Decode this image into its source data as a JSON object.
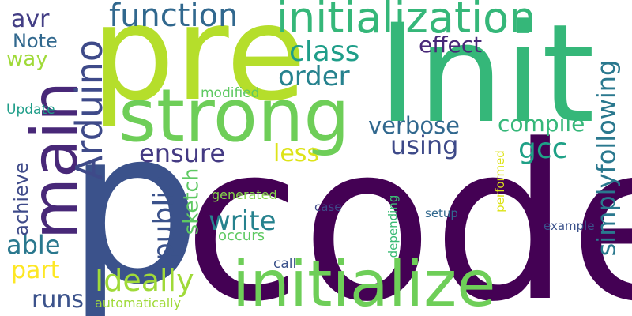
{
  "words": [
    {
      "text": "code",
      "color": "#440154"
    },
    {
      "text": "p",
      "color": "#3b528b"
    },
    {
      "text": "Init",
      "color": "#35b779"
    },
    {
      "text": "pre",
      "color": "#b5de2b"
    },
    {
      "text": "strong",
      "color": "#6ece58"
    },
    {
      "text": "initialize",
      "color": "#6ece58"
    },
    {
      "text": "initialization",
      "color": "#35b779"
    },
    {
      "text": "main",
      "color": "#482878"
    },
    {
      "text": "Arduino",
      "color": "#3e4a89"
    },
    {
      "text": "function",
      "color": "#31688e"
    },
    {
      "text": "class",
      "color": "#1f9e89"
    },
    {
      "text": "order",
      "color": "#26828e"
    },
    {
      "text": "effect",
      "color": "#482878"
    },
    {
      "text": "simplyfollowing",
      "color": "#2a788e"
    },
    {
      "text": "verbose",
      "color": "#31688e"
    },
    {
      "text": "compile",
      "color": "#35b779"
    },
    {
      "text": "gcc",
      "color": "#1fa187"
    },
    {
      "text": "using",
      "color": "#3e4a89"
    },
    {
      "text": "ensure",
      "color": "#443a83"
    },
    {
      "text": "less",
      "color": "#dde318"
    },
    {
      "text": "write",
      "color": "#26828e"
    },
    {
      "text": "public",
      "color": "#3b528b"
    },
    {
      "text": "sketch",
      "color": "#5ec962"
    },
    {
      "text": "Ideally",
      "color": "#a0da39"
    },
    {
      "text": "runs",
      "color": "#3b528b"
    },
    {
      "text": "part",
      "color": "#fde725"
    },
    {
      "text": "able",
      "color": "#2a788e"
    },
    {
      "text": "achieve",
      "color": "#3e4a89"
    },
    {
      "text": "avr",
      "color": "#433e85"
    },
    {
      "text": "Note",
      "color": "#31688e"
    },
    {
      "text": "way",
      "color": "#a0da39"
    },
    {
      "text": "Update",
      "color": "#1f9e89"
    },
    {
      "text": "modified",
      "color": "#5ec962"
    },
    {
      "text": "generated",
      "color": "#84d44b"
    },
    {
      "text": "occurs",
      "color": "#5ec962"
    },
    {
      "text": "case",
      "color": "#3e4a89"
    },
    {
      "text": "setup",
      "color": "#31688e"
    },
    {
      "text": "depending",
      "color": "#3bbb75"
    },
    {
      "text": "performed",
      "color": "#dde318"
    },
    {
      "text": "example",
      "color": "#3b528b"
    },
    {
      "text": "call",
      "color": "#3b528b"
    },
    {
      "text": "automatically",
      "color": "#a0da39"
    }
  ]
}
